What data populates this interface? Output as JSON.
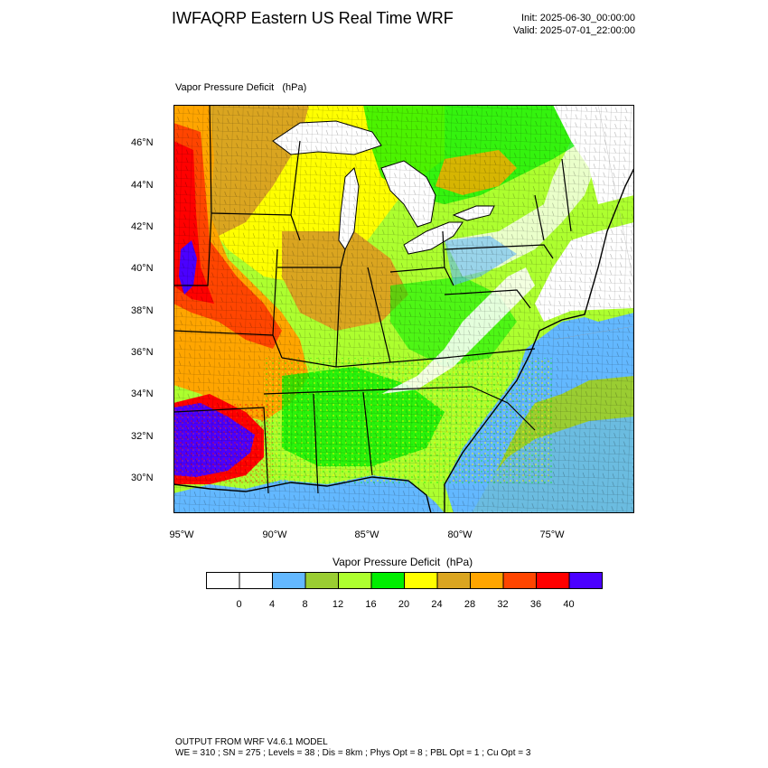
{
  "header": {
    "title": "IWFAQRP Eastern US Real Time WRF",
    "init": "Init: 2025-06-30_00:00:00",
    "valid": "Valid: 2025-07-01_22:00:00"
  },
  "map": {
    "label": "Vapor Pressure Deficit   (hPa)",
    "lat_labels": [
      "46°N",
      "44°N",
      "42°N",
      "40°N",
      "38°N",
      "36°N",
      "34°N",
      "32°N",
      "30°N"
    ],
    "lon_labels": [
      "95°W",
      "90°W",
      "85°W",
      "80°W",
      "75°W"
    ]
  },
  "legend": {
    "title": "Vapor Pressure Deficit  (hPa)",
    "ticks": [
      "0",
      "4",
      "8",
      "12",
      "16",
      "20",
      "24",
      "28",
      "32",
      "36",
      "40"
    ],
    "colors": [
      "#ffffff",
      "#ffffff",
      "#63b8ff",
      "#9acd32",
      "#adff2f",
      "#00ee00",
      "#ffff00",
      "#daa520",
      "#ffa500",
      "#ff4500",
      "#ff0000",
      "#4b00ff"
    ]
  },
  "footer": {
    "line1": "OUTPUT FROM WRF V4.6.1 MODEL",
    "line2": "WE = 310 ; SN = 275 ; Levels = 38 ; Dis = 8km ; Phys Opt = 8 ; PBL Opt = 1 ; Cu Opt = 3"
  }
}
